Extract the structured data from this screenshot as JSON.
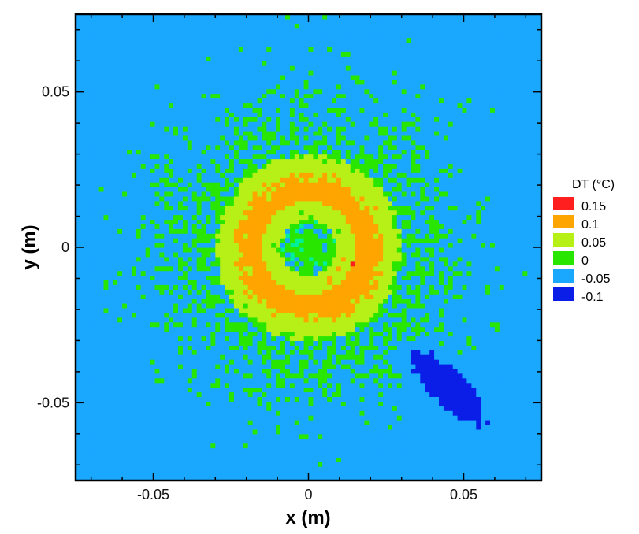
{
  "chart_data": {
    "type": "heatmap",
    "subtype": "filled-contour",
    "title": "",
    "xlabel": "x (m)",
    "ylabel": "y (m)",
    "xlim": [
      -0.075,
      0.075
    ],
    "ylim": [
      -0.075,
      0.075
    ],
    "x_ticks": [
      {
        "value": -0.05,
        "label": "-0.05"
      },
      {
        "value": 0,
        "label": "0"
      },
      {
        "value": 0.05,
        "label": "0.05"
      }
    ],
    "y_ticks": [
      {
        "value": 0.05,
        "label": "0.05"
      },
      {
        "value": 0,
        "label": "0"
      },
      {
        "value": -0.05,
        "label": "-0.05"
      }
    ],
    "grid": false,
    "legend": {
      "title": "DT (°C)",
      "placement": "right",
      "levels": [
        {
          "label": "0.15",
          "value": 0.15,
          "color": "#ff1f1f"
        },
        {
          "label": "0.1",
          "value": 0.1,
          "color": "#ffa500"
        },
        {
          "label": "0.05",
          "value": 0.05,
          "color": "#b6f016"
        },
        {
          "label": "0",
          "value": 0,
          "color": "#29e600"
        },
        {
          "label": "-0.05",
          "value": -0.05,
          "color": "#1aa8ff"
        },
        {
          "label": "-0.1",
          "value": -0.1,
          "color": "#0a1ee8"
        }
      ]
    },
    "background_color": "#00f09a",
    "field_description_levels": {
      "center": [
        0,
        0
      ],
      "peak_value": 0.15,
      "cold_spot_center": [
        0.045,
        -0.045
      ],
      "cold_spot_min": -0.1
    }
  }
}
